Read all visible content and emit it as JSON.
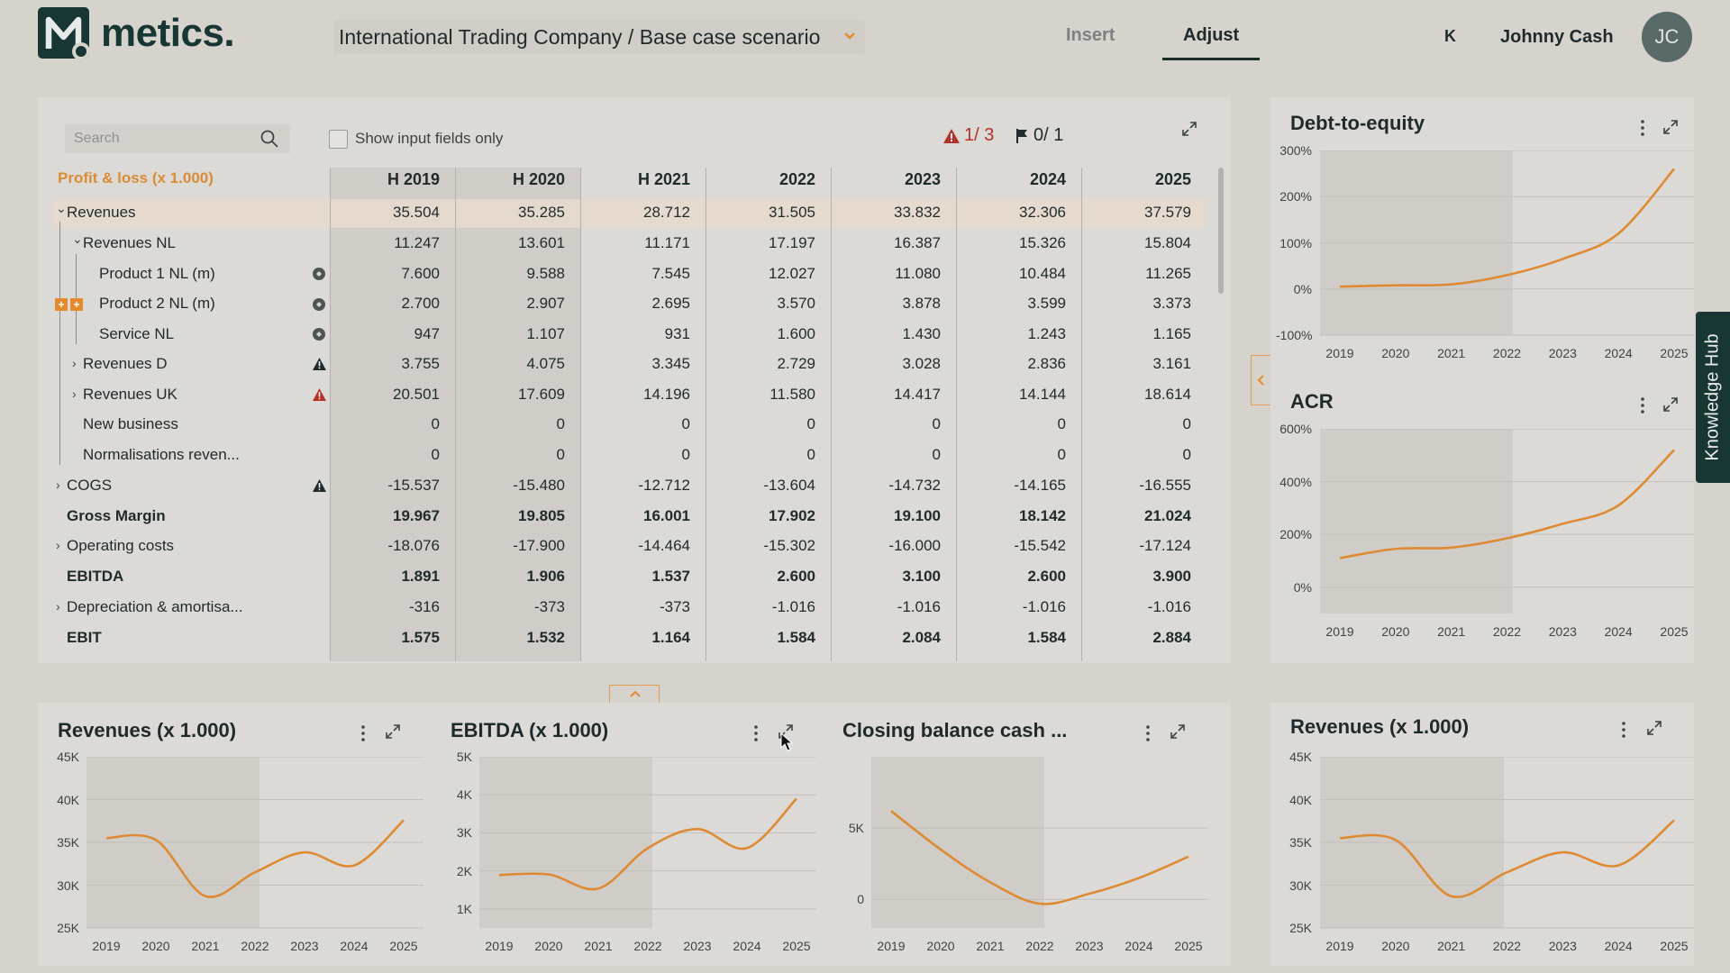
{
  "header": {
    "logo_text": "metics.",
    "scenario": "International Trading Company / Base case scenario",
    "tabs": [
      {
        "label": "Insert"
      },
      {
        "label": "Adjust"
      }
    ],
    "k_label": "K",
    "user_name": "Johnny Cash",
    "avatar_initials": "JC"
  },
  "toolbar": {
    "search_placeholder": "Search",
    "show_input_label": "Show input fields only",
    "alerts": "1/ 3",
    "flags": "0/ 1"
  },
  "table": {
    "title": "Profit & loss (x 1.000)",
    "columns": [
      "H 2019",
      "H 2020",
      "H 2021",
      "2022",
      "2023",
      "2024",
      "2025"
    ],
    "rows": [
      {
        "label": "Revenues",
        "values": [
          "35.504",
          "35.285",
          "28.712",
          "31.505",
          "33.832",
          "32.306",
          "37.579"
        ]
      },
      {
        "label": "Revenues NL",
        "values": [
          "11.247",
          "13.601",
          "11.171",
          "17.197",
          "16.387",
          "15.326",
          "15.804"
        ]
      },
      {
        "label": "Product 1 NL (m)",
        "values": [
          "7.600",
          "9.588",
          "7.545",
          "12.027",
          "11.080",
          "10.484",
          "11.265"
        ]
      },
      {
        "label": "Product 2 NL (m)",
        "values": [
          "2.700",
          "2.907",
          "2.695",
          "3.570",
          "3.878",
          "3.599",
          "3.373"
        ]
      },
      {
        "label": "Service NL",
        "values": [
          "947",
          "1.107",
          "931",
          "1.600",
          "1.430",
          "1.243",
          "1.165"
        ]
      },
      {
        "label": "Revenues D",
        "values": [
          "3.755",
          "4.075",
          "3.345",
          "2.729",
          "3.028",
          "2.836",
          "3.161"
        ]
      },
      {
        "label": "Revenues UK",
        "values": [
          "20.501",
          "17.609",
          "14.196",
          "11.580",
          "14.417",
          "14.144",
          "18.614"
        ]
      },
      {
        "label": "New business",
        "values": [
          "0",
          "0",
          "0",
          "0",
          "0",
          "0",
          "0"
        ]
      },
      {
        "label": "Normalisations reven...",
        "values": [
          "0",
          "0",
          "0",
          "0",
          "0",
          "0",
          "0"
        ]
      },
      {
        "label": "COGS",
        "values": [
          "-15.537",
          "-15.480",
          "-12.712",
          "-13.604",
          "-14.732",
          "-14.165",
          "-16.555"
        ]
      },
      {
        "label": "Gross Margin",
        "values": [
          "19.967",
          "19.805",
          "16.001",
          "17.902",
          "19.100",
          "18.142",
          "21.024"
        ]
      },
      {
        "label": "Operating costs",
        "values": [
          "-18.076",
          "-17.900",
          "-14.464",
          "-15.302",
          "-16.000",
          "-15.542",
          "-17.124"
        ]
      },
      {
        "label": "EBITDA",
        "values": [
          "1.891",
          "1.906",
          "1.537",
          "2.600",
          "3.100",
          "2.600",
          "3.900"
        ]
      },
      {
        "label": "Depreciation & amortisa...",
        "values": [
          "-316",
          "-373",
          "-373",
          "-1.016",
          "-1.016",
          "-1.016",
          "-1.016"
        ]
      },
      {
        "label": "EBIT",
        "values": [
          "1.575",
          "1.532",
          "1.164",
          "1.584",
          "2.084",
          "1.584",
          "2.884"
        ]
      }
    ]
  },
  "knowledge_hub": "Knowledge Hub",
  "colors": {
    "line": "#de8a33",
    "brand": "#173634",
    "alert": "#b5312b"
  },
  "chart_data": [
    {
      "type": "line",
      "title": "Debt-to-equity",
      "x": [
        "2019",
        "2020",
        "2021",
        "2022",
        "2023",
        "2024",
        "2025"
      ],
      "y_ticks": [
        "300%",
        "200%",
        "100%",
        "0%",
        "-100%"
      ],
      "ylim": [
        -100,
        300
      ],
      "series": [
        {
          "values": [
            5,
            8,
            10,
            30,
            65,
            120,
            260
          ]
        }
      ]
    },
    {
      "type": "line",
      "title": "ACR",
      "x": [
        "2019",
        "2020",
        "2021",
        "2022",
        "2023",
        "2024",
        "2025"
      ],
      "y_ticks": [
        "600%",
        "400%",
        "200%",
        "0%"
      ],
      "ylim": [
        -100,
        600
      ],
      "series": [
        {
          "values": [
            110,
            145,
            150,
            185,
            240,
            310,
            520
          ]
        }
      ]
    },
    {
      "type": "line",
      "title": "Revenues (x 1.000)",
      "x": [
        "2019",
        "2020",
        "2021",
        "2022",
        "2023",
        "2024",
        "2025"
      ],
      "y_ticks": [
        "45K",
        "40K",
        "35K",
        "30K",
        "25K"
      ],
      "ylim": [
        25000,
        45000
      ],
      "series": [
        {
          "values": [
            35504,
            35285,
            28712,
            31505,
            33832,
            32306,
            37579
          ]
        }
      ]
    },
    {
      "type": "line",
      "title": "EBITDA (x 1.000)",
      "x": [
        "2019",
        "2020",
        "2021",
        "2022",
        "2023",
        "2024",
        "2025"
      ],
      "y_ticks": [
        "5K",
        "4K",
        "3K",
        "2K",
        "1K"
      ],
      "ylim": [
        500,
        5000
      ],
      "series": [
        {
          "values": [
            1891,
            1906,
            1537,
            2600,
            3100,
            2600,
            3900
          ]
        }
      ]
    },
    {
      "type": "line",
      "title": "Closing balance cash ...",
      "x": [
        "2019",
        "2020",
        "2021",
        "2022",
        "2023",
        "2024",
        "2025"
      ],
      "y_ticks": [
        "5K",
        "0"
      ],
      "ylim": [
        -2000,
        10000
      ],
      "series": [
        {
          "values": [
            6200,
            3500,
            1200,
            -300,
            400,
            1500,
            3000
          ]
        }
      ]
    },
    {
      "type": "line",
      "title": "Revenues (x 1.000)",
      "x": [
        "2019",
        "2020",
        "2021",
        "2022",
        "2023",
        "2024",
        "2025"
      ],
      "y_ticks": [
        "45K",
        "40K",
        "35K",
        "30K",
        "25K"
      ],
      "ylim": [
        25000,
        45000
      ],
      "series": [
        {
          "values": [
            35504,
            35285,
            28712,
            31505,
            33832,
            32306,
            37579
          ]
        }
      ]
    }
  ]
}
